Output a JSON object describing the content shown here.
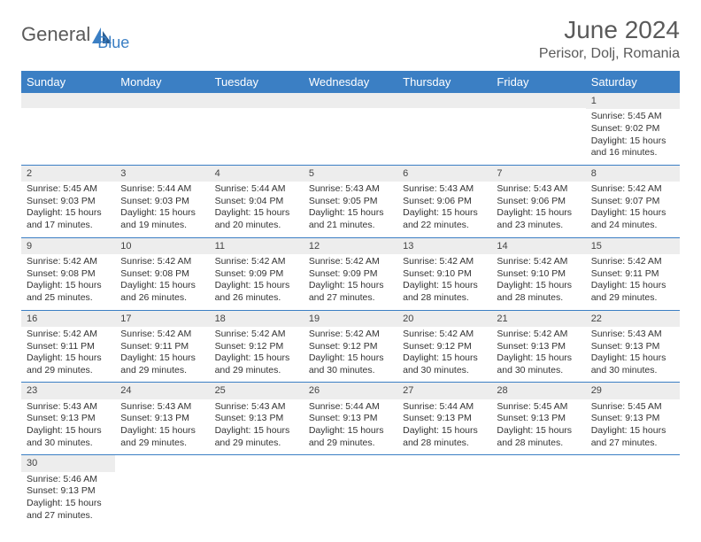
{
  "brand": {
    "part1": "General",
    "part2": "Blue"
  },
  "title": "June 2024",
  "location": "Perisor, Dolj, Romania",
  "colors": {
    "header_bg": "#3b7fc4",
    "band_bg": "#ededed",
    "text": "#333333",
    "brand_gray": "#5a5a5a"
  },
  "day_headers": [
    "Sunday",
    "Monday",
    "Tuesday",
    "Wednesday",
    "Thursday",
    "Friday",
    "Saturday"
  ],
  "weeks": [
    [
      null,
      null,
      null,
      null,
      null,
      null,
      {
        "n": "1",
        "sr": "5:45 AM",
        "ss": "9:02 PM",
        "dl": "15 hours and 16 minutes."
      }
    ],
    [
      {
        "n": "2",
        "sr": "5:45 AM",
        "ss": "9:03 PM",
        "dl": "15 hours and 17 minutes."
      },
      {
        "n": "3",
        "sr": "5:44 AM",
        "ss": "9:03 PM",
        "dl": "15 hours and 19 minutes."
      },
      {
        "n": "4",
        "sr": "5:44 AM",
        "ss": "9:04 PM",
        "dl": "15 hours and 20 minutes."
      },
      {
        "n": "5",
        "sr": "5:43 AM",
        "ss": "9:05 PM",
        "dl": "15 hours and 21 minutes."
      },
      {
        "n": "6",
        "sr": "5:43 AM",
        "ss": "9:06 PM",
        "dl": "15 hours and 22 minutes."
      },
      {
        "n": "7",
        "sr": "5:43 AM",
        "ss": "9:06 PM",
        "dl": "15 hours and 23 minutes."
      },
      {
        "n": "8",
        "sr": "5:42 AM",
        "ss": "9:07 PM",
        "dl": "15 hours and 24 minutes."
      }
    ],
    [
      {
        "n": "9",
        "sr": "5:42 AM",
        "ss": "9:08 PM",
        "dl": "15 hours and 25 minutes."
      },
      {
        "n": "10",
        "sr": "5:42 AM",
        "ss": "9:08 PM",
        "dl": "15 hours and 26 minutes."
      },
      {
        "n": "11",
        "sr": "5:42 AM",
        "ss": "9:09 PM",
        "dl": "15 hours and 26 minutes."
      },
      {
        "n": "12",
        "sr": "5:42 AM",
        "ss": "9:09 PM",
        "dl": "15 hours and 27 minutes."
      },
      {
        "n": "13",
        "sr": "5:42 AM",
        "ss": "9:10 PM",
        "dl": "15 hours and 28 minutes."
      },
      {
        "n": "14",
        "sr": "5:42 AM",
        "ss": "9:10 PM",
        "dl": "15 hours and 28 minutes."
      },
      {
        "n": "15",
        "sr": "5:42 AM",
        "ss": "9:11 PM",
        "dl": "15 hours and 29 minutes."
      }
    ],
    [
      {
        "n": "16",
        "sr": "5:42 AM",
        "ss": "9:11 PM",
        "dl": "15 hours and 29 minutes."
      },
      {
        "n": "17",
        "sr": "5:42 AM",
        "ss": "9:11 PM",
        "dl": "15 hours and 29 minutes."
      },
      {
        "n": "18",
        "sr": "5:42 AM",
        "ss": "9:12 PM",
        "dl": "15 hours and 29 minutes."
      },
      {
        "n": "19",
        "sr": "5:42 AM",
        "ss": "9:12 PM",
        "dl": "15 hours and 30 minutes."
      },
      {
        "n": "20",
        "sr": "5:42 AM",
        "ss": "9:12 PM",
        "dl": "15 hours and 30 minutes."
      },
      {
        "n": "21",
        "sr": "5:42 AM",
        "ss": "9:13 PM",
        "dl": "15 hours and 30 minutes."
      },
      {
        "n": "22",
        "sr": "5:43 AM",
        "ss": "9:13 PM",
        "dl": "15 hours and 30 minutes."
      }
    ],
    [
      {
        "n": "23",
        "sr": "5:43 AM",
        "ss": "9:13 PM",
        "dl": "15 hours and 30 minutes."
      },
      {
        "n": "24",
        "sr": "5:43 AM",
        "ss": "9:13 PM",
        "dl": "15 hours and 29 minutes."
      },
      {
        "n": "25",
        "sr": "5:43 AM",
        "ss": "9:13 PM",
        "dl": "15 hours and 29 minutes."
      },
      {
        "n": "26",
        "sr": "5:44 AM",
        "ss": "9:13 PM",
        "dl": "15 hours and 29 minutes."
      },
      {
        "n": "27",
        "sr": "5:44 AM",
        "ss": "9:13 PM",
        "dl": "15 hours and 28 minutes."
      },
      {
        "n": "28",
        "sr": "5:45 AM",
        "ss": "9:13 PM",
        "dl": "15 hours and 28 minutes."
      },
      {
        "n": "29",
        "sr": "5:45 AM",
        "ss": "9:13 PM",
        "dl": "15 hours and 27 minutes."
      }
    ],
    [
      {
        "n": "30",
        "sr": "5:46 AM",
        "ss": "9:13 PM",
        "dl": "15 hours and 27 minutes."
      },
      null,
      null,
      null,
      null,
      null,
      null
    ]
  ],
  "labels": {
    "sunrise": "Sunrise:",
    "sunset": "Sunset:",
    "daylight": "Daylight:"
  }
}
